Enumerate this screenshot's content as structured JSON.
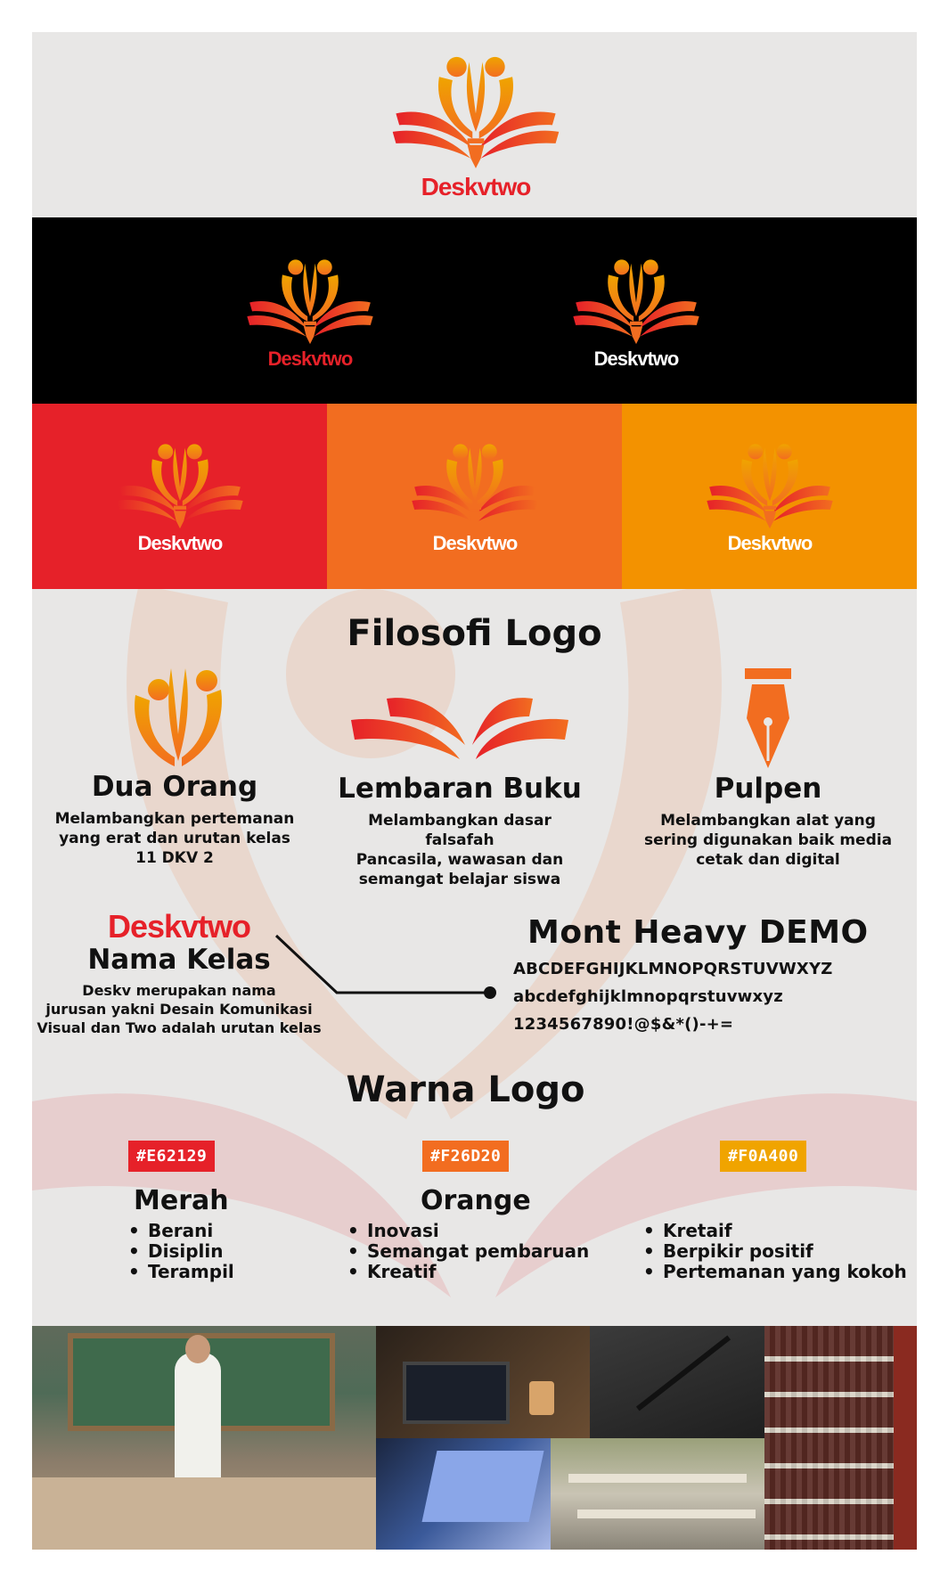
{
  "brand": {
    "wordmark": "Deskvtwo",
    "colors": {
      "red": "#E62129",
      "orange": "#F26D20",
      "amber": "#F0A400",
      "black": "#000000",
      "white": "#FFFFFF"
    }
  },
  "philosophy": {
    "title": "Filosofi Logo",
    "items": [
      {
        "heading": "Dua Orang",
        "lines": [
          "Melambangkan pertemanan",
          "yang erat dan urutan  kelas",
          "11 DKV 2"
        ]
      },
      {
        "heading": "Lembaran Buku",
        "lines": [
          "Melambangkan dasar falsafah",
          "Pancasila, wawasan dan",
          "semangat belajar siswa"
        ]
      },
      {
        "heading": "Pulpen",
        "lines": [
          "Melambangkan alat yang",
          "sering digunakan baik media",
          "cetak dan digital"
        ]
      }
    ],
    "class_name": {
      "heading": "Nama Kelas",
      "lines": [
        "Deskv merupakan nama",
        "jurusan yakni Desain Komunikasi",
        "Visual dan Two adalah urutan kelas"
      ]
    }
  },
  "typeface": {
    "name": "Mont Heavy DEMO",
    "upper": "ABCDEFGHIJKLMNOPQRSTUVWXYZ",
    "lower": "abcdefghijklmnopqrstuvwxyz",
    "digits": "1234567890!@$&*()-+="
  },
  "palette": {
    "title": "Warna Logo",
    "swatches": [
      {
        "code": "#E62129",
        "name": "Merah",
        "traits": [
          "Berani",
          "Disiplin",
          "Terampil"
        ]
      },
      {
        "code": "#F26D20",
        "name": "Orange",
        "traits": [
          "Inovasi",
          "Semangat pembaruan",
          "Kreatif"
        ]
      },
      {
        "code": "#F0A400",
        "name": "",
        "traits": [
          "Kretaif",
          "Berpikir positif",
          "Pertemanan yang kokoh"
        ]
      }
    ]
  },
  "icons": [
    "people-book-pen-logo-icon",
    "two-people-icon",
    "open-book-pages-icon",
    "pen-nib-icon"
  ]
}
